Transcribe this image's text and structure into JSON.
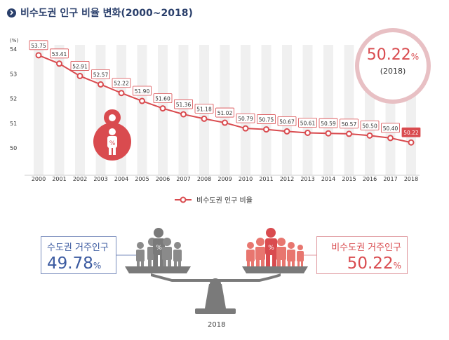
{
  "title": "비수도권 인구 비율 변화(2000~2018)",
  "chart_data": {
    "type": "line",
    "title": "비수도권 인구 비율 변화(2000~2018)",
    "ylabel": "(%)",
    "ylim": [
      50,
      54
    ],
    "yticks": [
      "50",
      "51",
      "52",
      "53",
      "54"
    ],
    "categories": [
      "2000",
      "2001",
      "2002",
      "2003",
      "2004",
      "2005",
      "2006",
      "2007",
      "2008",
      "2009",
      "2010",
      "2011",
      "2012",
      "2013",
      "2014",
      "2015",
      "2016",
      "2017",
      "2018"
    ],
    "series": [
      {
        "name": "비수도권 인구 비율",
        "values": [
          53.75,
          53.41,
          52.91,
          52.57,
          52.22,
          51.9,
          51.6,
          51.36,
          51.18,
          51.02,
          50.79,
          50.75,
          50.67,
          50.61,
          50.59,
          50.57,
          50.5,
          50.4,
          50.22
        ],
        "labels": [
          "53.75",
          "53.41",
          "52.91",
          "52.57",
          "52.22",
          "51.90",
          "51.60",
          "51.36",
          "51.18",
          "51.02",
          "50.79",
          "50.75",
          "50.67",
          "50.61",
          "50.59",
          "50.57",
          "50.50",
          "50.40",
          "50.22"
        ]
      }
    ],
    "grid": true,
    "legend": "bottom-center",
    "colors": {
      "line": "#d94b4f",
      "bar_bg": "#f0f0f0",
      "last_label_bg": "#d94b4f",
      "axis_text": "#333333"
    }
  },
  "callout": {
    "value": "50.22",
    "unit": "%",
    "year": "(2018)"
  },
  "person_pin_text": "%",
  "capital": {
    "caption": "수도권 거주인구",
    "value": "49.78",
    "unit": "%"
  },
  "noncapital": {
    "caption": "비수도권 거주인구",
    "value": "50.22",
    "unit": "%"
  },
  "scale": {
    "person_text": "%"
  },
  "bottom_year": "2018",
  "colors": {
    "title": "#2a3f6b",
    "capital": "#3b5aa0",
    "noncapital": "#d94b4f",
    "scale_gray": "#7a7a7a"
  }
}
